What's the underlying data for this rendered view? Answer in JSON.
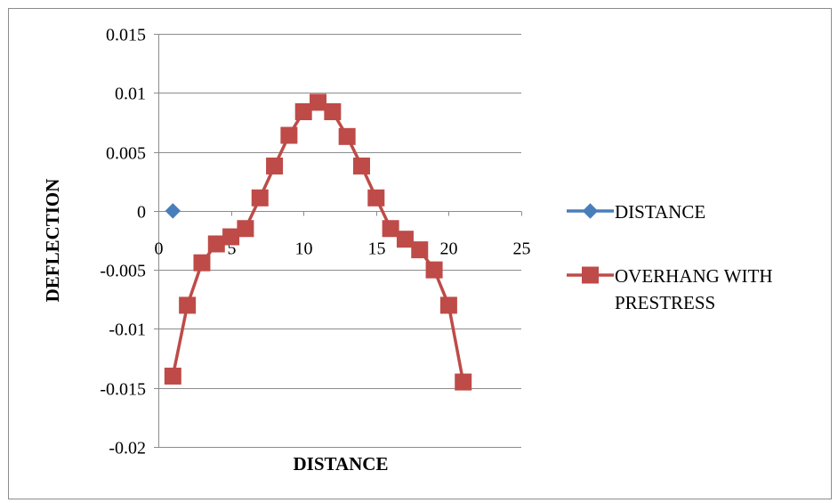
{
  "chart_data": {
    "type": "scatter",
    "title": "",
    "xlabel": "DISTANCE",
    "ylabel": "DEFLECTION",
    "xlim": [
      0,
      25
    ],
    "ylim": [
      -0.02,
      0.015
    ],
    "x_ticks": [
      0,
      5,
      10,
      15,
      20,
      25
    ],
    "x_tick_labels": [
      "0",
      "5",
      "10",
      "15",
      "20",
      "25"
    ],
    "y_ticks": [
      0.015,
      0.01,
      0.005,
      0,
      -0.005,
      -0.01,
      -0.015,
      -0.02
    ],
    "y_tick_labels": [
      "0.015",
      "0.01",
      "0.005",
      "0",
      "-0.005",
      "-0.01",
      "-0.015",
      "-0.02"
    ],
    "grid": "horizontal",
    "legend_position": "right",
    "series": [
      {
        "name": "DISTANCE",
        "color": "#4a7ebb",
        "marker": "diamond",
        "line": true,
        "x": [
          1
        ],
        "y": [
          0
        ]
      },
      {
        "name": "OVERHANG WITH PRESTRESS",
        "legend_lines": [
          "OVERHANG WITH",
          "PRESTRESS"
        ],
        "color": "#be4b48",
        "marker": "square",
        "line": true,
        "x": [
          1,
          2,
          3,
          4,
          5,
          6,
          7,
          8,
          9,
          10,
          11,
          12,
          13,
          14,
          15,
          16,
          17,
          18,
          19,
          20,
          21
        ],
        "y": [
          -0.014,
          -0.008,
          -0.0044,
          -0.0028,
          -0.0022,
          -0.0015,
          0.0011,
          0.0038,
          0.0064,
          0.0084,
          0.0092,
          0.0084,
          0.0063,
          0.0038,
          0.0011,
          -0.0015,
          -0.0024,
          -0.0033,
          -0.005,
          -0.008,
          -0.0145
        ]
      }
    ]
  }
}
